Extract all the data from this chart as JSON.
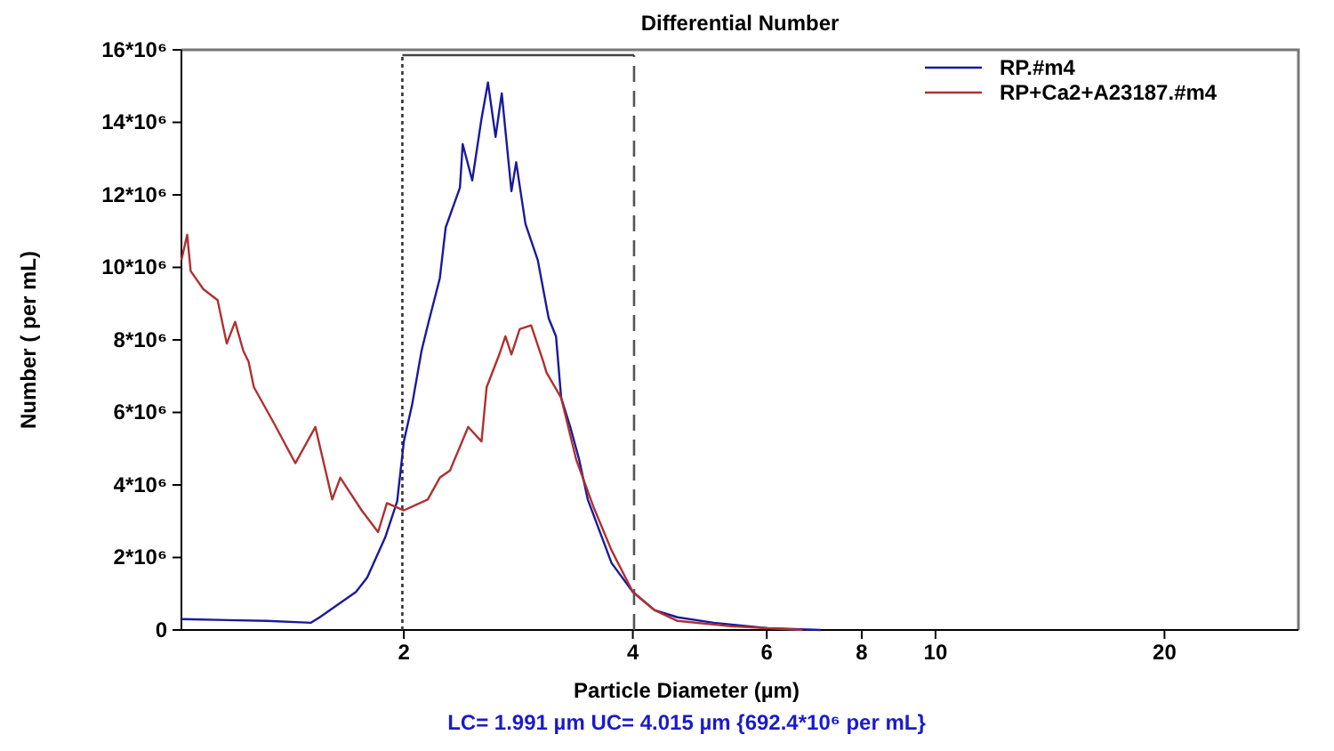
{
  "chart_data": {
    "type": "line",
    "title": "Differential Number",
    "xlabel": "Particle Diameter (µm)",
    "ylabel": "Number ( per mL)",
    "annotations": [
      "LC= 1.991 µm   UC= 4.015 µm {692.4*10⁶  per mL}"
    ],
    "log": "x",
    "xlim": [
      1.02,
      30
    ],
    "xticks": [
      2,
      4,
      6,
      8,
      10,
      20
    ],
    "ylim": [
      0,
      16000000
    ],
    "yticks": [
      0,
      {
        "value": 2000000,
        "label": "2*10⁶"
      },
      {
        "value": 4000000,
        "label": "4*10⁶"
      },
      {
        "value": 6000000,
        "label": "6*10⁶"
      },
      {
        "value": 8000000,
        "label": "8*10⁶"
      },
      {
        "value": 10000000,
        "label": "10*10⁶"
      },
      {
        "value": 12000000,
        "label": "12*10⁶"
      },
      {
        "value": 14000000,
        "label": "14*10⁶"
      },
      {
        "value": 16000000,
        "label": "16*10⁶"
      }
    ],
    "legend": "top right",
    "grid": false,
    "marker": "none",
    "ref_lines": [
      {
        "axis": "x",
        "value": 1.991,
        "line_style": "dotted",
        "color": "#333333"
      },
      {
        "axis": "x",
        "value": 4.015,
        "line_style": "dashed",
        "color": "#555555"
      }
    ],
    "series": [
      {
        "name": "RP.#m4",
        "color": "#1a1a9a",
        "x": [
          1.02,
          1.32,
          1.51,
          1.55,
          1.73,
          1.79,
          1.89,
          1.96,
          2.0,
          2.05,
          2.11,
          2.15,
          2.23,
          2.27,
          2.37,
          2.39,
          2.46,
          2.53,
          2.58,
          2.64,
          2.69,
          2.77,
          2.81,
          2.89,
          3.0,
          3.1,
          3.17,
          3.22,
          3.31,
          3.4,
          3.49,
          3.75,
          4.0,
          4.27,
          4.58,
          5.11,
          6.01,
          7.07
        ],
        "values": [
          300000,
          250000,
          200000,
          350000,
          1050000,
          1450000,
          2550000,
          3550000,
          5200000,
          6200000,
          7700000,
          8400000,
          9700000,
          11100000,
          12200000,
          13400000,
          12400000,
          14100000,
          15100000,
          13600000,
          14800000,
          12100000,
          12900000,
          11200000,
          10200000,
          8600000,
          8100000,
          6400000,
          5600000,
          4700000,
          3600000,
          1850000,
          1050000,
          550000,
          350000,
          200000,
          50000,
          0
        ]
      },
      {
        "name": "RP+Ca2+A23187.#m4",
        "color": "#b03030",
        "x": [
          1.02,
          1.038,
          1.049,
          1.09,
          1.138,
          1.17,
          1.2,
          1.23,
          1.25,
          1.27,
          1.35,
          1.44,
          1.53,
          1.61,
          1.65,
          1.76,
          1.85,
          1.9,
          2.0,
          2.15,
          2.23,
          2.3,
          2.43,
          2.53,
          2.57,
          2.67,
          2.72,
          2.77,
          2.84,
          2.94,
          3.05,
          3.08,
          3.22,
          3.37,
          3.55,
          3.75,
          4.0,
          4.27,
          4.58,
          5.39,
          6.69
        ],
        "values": [
          10200000,
          10900000,
          9900000,
          9400000,
          9100000,
          7900000,
          8500000,
          7700000,
          7400000,
          6700000,
          5700000,
          4600000,
          5600000,
          3600000,
          4200000,
          3300000,
          2700000,
          3500000,
          3300000,
          3600000,
          4200000,
          4400000,
          5600000,
          5200000,
          6700000,
          7600000,
          8100000,
          7600000,
          8300000,
          8400000,
          7400000,
          7100000,
          6400000,
          4700000,
          3400000,
          2200000,
          1050000,
          550000,
          250000,
          100000,
          0
        ]
      }
    ]
  }
}
